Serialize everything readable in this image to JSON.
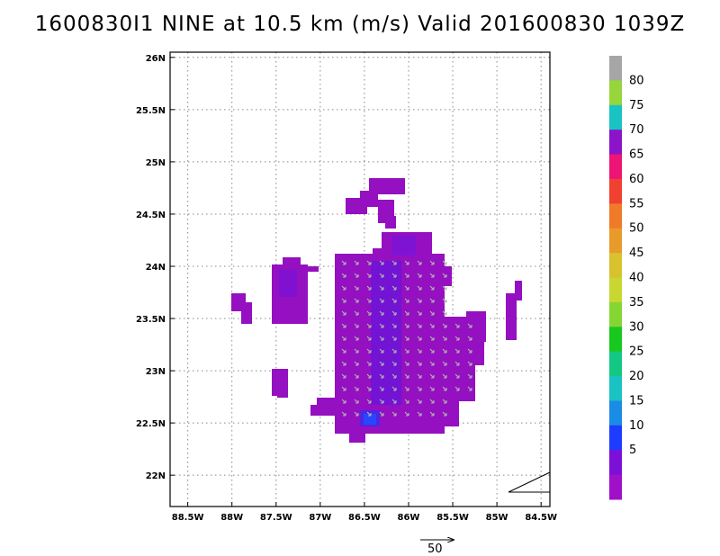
{
  "chart_data": {
    "type": "heatmap",
    "title": "1600830I1 NINE at 10.5 km (m/s) Valid 201600830 1039Z",
    "x_ticks": [
      "88.5W",
      "88W",
      "87.5W",
      "87W",
      "86.5W",
      "86W",
      "85.5W",
      "85W",
      "84.5W"
    ],
    "y_ticks": [
      "26N",
      "25.5N",
      "25N",
      "24.5N",
      "24N",
      "23.5N",
      "23N",
      "22.5N",
      "22N"
    ],
    "xlim": [
      -88.7,
      -84.4
    ],
    "ylim": [
      21.7,
      26.05
    ],
    "grid": true,
    "legend": "colorbar-right",
    "colorbar": {
      "labels": [
        "80",
        "75",
        "70",
        "65",
        "60",
        "55",
        "50",
        "45",
        "40",
        "35",
        "30",
        "25",
        "20",
        "15",
        "10",
        "5"
      ],
      "colors": [
        "#a6a6a6",
        "#96d63c",
        "#19c3c3",
        "#8b14c8",
        "#ee1476",
        "#f04030",
        "#ef7a2a",
        "#e89b2b",
        "#d8c22e",
        "#c8d732",
        "#86d633",
        "#19c81e",
        "#14c884",
        "#19c3c3",
        "#1a8ce6",
        "#1e3cff",
        "#7d10d8",
        "#a010c8"
      ]
    },
    "reference_vector": {
      "label": "50",
      "value": 50
    },
    "field_color": "#9410c0",
    "vector_color": "#b4b4b4",
    "wind_speed_range": [
      0,
      10
    ]
  }
}
